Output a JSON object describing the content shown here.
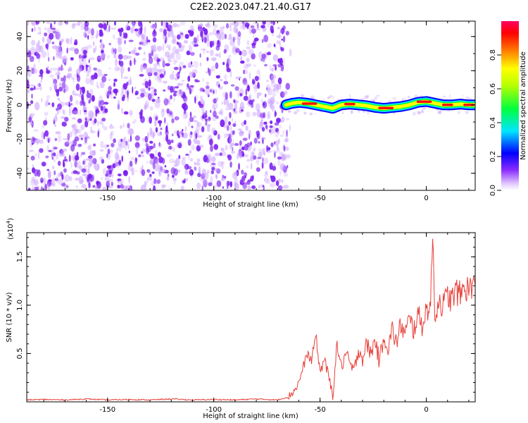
{
  "title": "C2E2.2023.047.21.40.G17",
  "colors": {
    "snr_line": "#e8403a",
    "scatter": "#7a1cf0",
    "scatter_light": "#c89cff",
    "axis": "#000000"
  },
  "chart_data": [
    {
      "type": "heatmap",
      "name": "spectrogram",
      "xlabel": "Height of straight line (km)",
      "ylabel": "Frequency (Hz)",
      "xlim": [
        -188,
        23
      ],
      "ylim": [
        -50,
        49
      ],
      "xticks": [
        -150,
        -100,
        -50,
        0
      ],
      "xtick_labels": [
        "-150",
        "-100",
        "-50",
        "0"
      ],
      "yticks": [
        -40,
        -20,
        0,
        20,
        40
      ],
      "ytick_labels": [
        "-40",
        "-20",
        "0",
        "20",
        "40"
      ],
      "noise_region_x": [
        -188,
        -65
      ],
      "signal_track": {
        "x": [
          -66,
          -63,
          -60,
          -56,
          -52,
          -48,
          -44,
          -40,
          -36,
          -32,
          -28,
          -24,
          -20,
          -16,
          -12,
          -8,
          -4,
          0,
          4,
          8,
          12,
          16,
          20,
          23
        ],
        "y": [
          0,
          1,
          1.5,
          1,
          0,
          -1,
          -2,
          0,
          0.5,
          0,
          -0.5,
          -1.5,
          -2,
          -1.5,
          -1,
          0,
          1.5,
          2,
          1,
          0,
          0,
          0.5,
          0,
          0
        ]
      }
    },
    {
      "type": "colorbar",
      "label": "Normalized spectral amplitude",
      "range": [
        0,
        1
      ],
      "ticks": [
        0,
        0.2,
        0.4,
        0.6,
        0.8
      ],
      "tick_labels": [
        "0.0",
        "0.2",
        "0.4",
        "0.6",
        "0.8"
      ]
    },
    {
      "type": "line",
      "name": "snr",
      "xlabel": "Height of straight line (km)",
      "ylabel": "SNR (10 * v/v)",
      "exponent_label": "(x10",
      "exponent_power": "4",
      "exponent_close": ")",
      "xlim": [
        -188,
        23
      ],
      "ylim": [
        0,
        1.75
      ],
      "xticks": [
        -150,
        -100,
        -50,
        0
      ],
      "xtick_labels": [
        "-150",
        "-100",
        "-50",
        "0"
      ],
      "yticks": [
        0.5,
        1.0,
        1.5
      ],
      "ytick_labels": [
        "0.5",
        "1.0",
        "1.5"
      ],
      "series": [
        {
          "name": "SNR",
          "x": [
            -188,
            -180,
            -170,
            -160,
            -150,
            -140,
            -130,
            -120,
            -110,
            -100,
            -90,
            -80,
            -70,
            -65,
            -62,
            -60,
            -58,
            -56,
            -54,
            -52,
            -50,
            -48,
            -46,
            -44,
            -42,
            -40,
            -38,
            -36,
            -34,
            -32,
            -30,
            -28,
            -26,
            -24,
            -22,
            -20,
            -18,
            -16,
            -14,
            -12,
            -10,
            -8,
            -6,
            -4,
            -2,
            0,
            2,
            3,
            4,
            6,
            8,
            10,
            12,
            14,
            16,
            18,
            20,
            22,
            23
          ],
          "y": [
            0.02,
            0.025,
            0.02,
            0.03,
            0.02,
            0.025,
            0.02,
            0.03,
            0.02,
            0.025,
            0.02,
            0.03,
            0.02,
            0.05,
            0.12,
            0.2,
            0.35,
            0.5,
            0.42,
            0.7,
            0.3,
            0.45,
            0.25,
            0.08,
            0.6,
            0.35,
            0.5,
            0.4,
            0.3,
            0.55,
            0.45,
            0.6,
            0.5,
            0.65,
            0.4,
            0.7,
            0.55,
            0.75,
            0.6,
            0.8,
            0.7,
            0.85,
            0.75,
            0.9,
            0.8,
            0.95,
            1.0,
            1.75,
            0.9,
            1.05,
            1.0,
            1.1,
            1.05,
            1.15,
            1.1,
            1.2,
            1.15,
            1.25,
            1.2
          ]
        }
      ]
    }
  ]
}
